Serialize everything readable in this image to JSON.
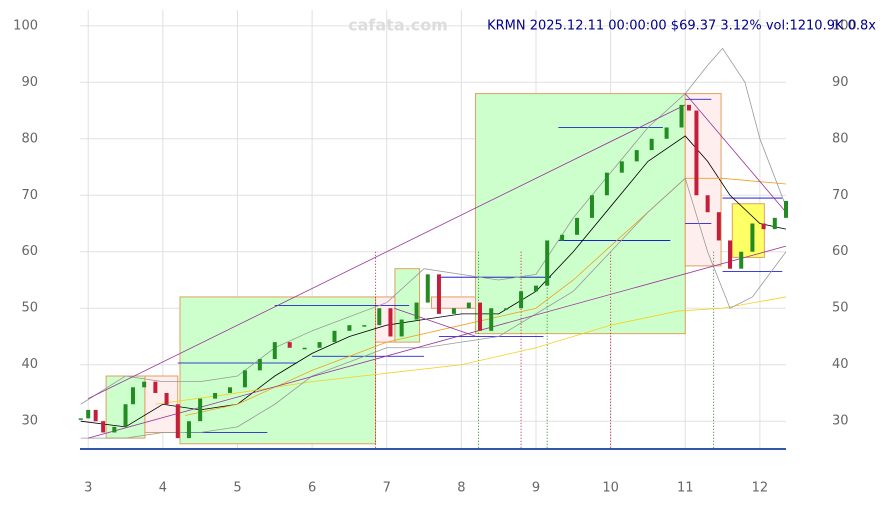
{
  "chart_data": {
    "type": "candlestick",
    "title": "KRMN 2025.12.11 00:00:00 $69.37 3.12% vol:1210.9K 0.8x",
    "watermark": "cafata.com",
    "xlim": [
      2.89,
      12.35
    ],
    "ylim": [
      24.9,
      102.8
    ],
    "xticks": [
      3,
      4,
      5,
      6,
      7,
      8,
      9,
      10,
      11,
      12
    ],
    "yticks": [
      30,
      40,
      50,
      60,
      70,
      80,
      90,
      100
    ],
    "grid": true,
    "candles": {
      "x": [
        2.9,
        3.0,
        3.1,
        3.2,
        3.35,
        3.5,
        3.6,
        3.75,
        3.9,
        4.05,
        4.2,
        4.35,
        4.5,
        4.7,
        4.9,
        5.1,
        5.3,
        5.5,
        5.7,
        5.9,
        6.1,
        6.3,
        6.5,
        6.7,
        6.9,
        7.05,
        7.2,
        7.4,
        7.55,
        7.7,
        7.9,
        8.1,
        8.25,
        8.4,
        8.6,
        8.8,
        9.0,
        9.15,
        9.35,
        9.55,
        9.75,
        9.95,
        10.15,
        10.35,
        10.55,
        10.75,
        10.95,
        11.05,
        11.15,
        11.3,
        11.45,
        11.6,
        11.75,
        11.9,
        12.05,
        12.2,
        12.35
      ],
      "close": [
        30.5,
        32,
        30,
        28,
        29,
        33,
        36,
        37,
        35,
        33,
        27,
        30,
        34,
        35,
        36,
        39,
        41,
        44,
        43,
        43,
        44,
        46,
        47,
        47,
        50,
        45,
        48,
        51,
        56,
        49,
        50,
        51,
        46,
        50,
        50,
        53,
        54,
        62,
        63,
        66,
        70,
        74,
        76,
        78,
        80,
        82,
        86,
        85,
        70,
        67,
        62,
        57,
        60,
        65,
        64,
        66,
        69
      ],
      "up_color": "#228b22",
      "down_color": "#c41e3a"
    },
    "lines": [
      {
        "color": "#000000",
        "x": [
          2.9,
          3.5,
          4.0,
          4.5,
          5,
          5.5,
          6,
          6.5,
          7,
          7.5,
          8,
          8.5,
          9,
          9.5,
          10,
          10.5,
          11,
          11.3,
          11.6,
          12,
          12.35
        ],
        "values": [
          30,
          29,
          33,
          32,
          33,
          38,
          42,
          45,
          47,
          48,
          49,
          49,
          53,
          60,
          68,
          76,
          80.5,
          76,
          70,
          65,
          64
        ]
      },
      {
        "color": "#f0a020",
        "x": [
          4.3,
          5,
          5.5,
          6,
          7,
          8,
          9,
          9.5,
          10,
          10.5,
          11,
          11.5,
          12.35
        ],
        "values": [
          31,
          33,
          36,
          39,
          44,
          47,
          50,
          55,
          61,
          67,
          73,
          73,
          72
        ]
      },
      {
        "color": "#f5d020",
        "x": [
          3.9,
          5,
          6,
          7,
          8,
          9,
          10,
          10.9,
          11.5,
          12.35
        ],
        "values": [
          33,
          35,
          37,
          38.5,
          40,
          43,
          47,
          49.5,
          50,
          52
        ]
      },
      {
        "color": "#999999",
        "x": [
          2.9,
          3.5,
          4,
          4.5,
          5,
          5.5,
          6,
          7,
          7.5,
          8,
          8.5,
          9,
          9.5,
          10,
          10.5,
          11,
          11.3,
          11.5,
          11.8,
          12,
          12.35
        ],
        "values": [
          33,
          38,
          37,
          37,
          38,
          43,
          46,
          51,
          57,
          56,
          55,
          56,
          66,
          74,
          82,
          88,
          93,
          96,
          90,
          80,
          68
        ]
      },
      {
        "color": "#999999",
        "x": [
          2.9,
          3.5,
          4,
          4.5,
          5,
          5.5,
          6,
          7,
          7.5,
          8,
          8.5,
          9,
          9.5,
          10,
          10.5,
          11,
          11.3,
          11.6,
          11.9,
          12.35
        ],
        "values": [
          27,
          27,
          28,
          28,
          29,
          33,
          38,
          43,
          43,
          44,
          45,
          49,
          53,
          60,
          67,
          73,
          60,
          50,
          52,
          60
        ]
      }
    ],
    "zones": [
      {
        "x0": 3.24,
        "x1": 3.76,
        "y0": 27,
        "y1": 38,
        "color": "#ccffcc"
      },
      {
        "x0": 3.76,
        "x1": 4.2,
        "y0": 28,
        "y1": 38,
        "color": "#ffeeee"
      },
      {
        "x0": 4.23,
        "x1": 6.85,
        "y0": 26,
        "y1": 52,
        "color": "#ccffcc"
      },
      {
        "x0": 6.85,
        "x1": 7.11,
        "y0": 44,
        "y1": 52,
        "color": "#ffeeee"
      },
      {
        "x0": 7.11,
        "x1": 7.44,
        "y0": 44,
        "y1": 57,
        "color": "#ccffcc"
      },
      {
        "x0": 7.6,
        "x1": 8.19,
        "y0": 50,
        "y1": 52,
        "color": "#ffeeee"
      },
      {
        "x0": 8.19,
        "x1": 11.0,
        "y0": 45.5,
        "y1": 88,
        "color": "#ccffcc"
      },
      {
        "x0": 11.0,
        "x1": 11.48,
        "y0": 57.5,
        "y1": 88,
        "color": "#ffeeee"
      },
      {
        "x0": 11.63,
        "x1": 12.06,
        "y0": 59,
        "y1": 68.5,
        "color": "#ffff66"
      }
    ],
    "levels": [
      {
        "x0": 4.2,
        "x1": 5.8,
        "y": 40.3
      },
      {
        "x0": 5.5,
        "x1": 7.3,
        "y": 50.5
      },
      {
        "x0": 4.3,
        "x1": 5.4,
        "y": 28
      },
      {
        "x0": 6.0,
        "x1": 7.5,
        "y": 41.5
      },
      {
        "x0": 7.7,
        "x1": 9.2,
        "y": 55.5
      },
      {
        "x0": 7.7,
        "x1": 9.1,
        "y": 45
      },
      {
        "x0": 9.3,
        "x1": 10.7,
        "y": 82
      },
      {
        "x0": 9.3,
        "x1": 10.8,
        "y": 62
      },
      {
        "x0": 11.0,
        "x1": 11.35,
        "y": 87
      },
      {
        "x0": 11.0,
        "x1": 11.35,
        "y": 65
      },
      {
        "x0": 11.5,
        "x1": 12.3,
        "y": 69.5
      },
      {
        "x0": 11.5,
        "x1": 12.3,
        "y": 56.5
      }
    ],
    "trendlines": [
      {
        "x0": 3.0,
        "y0": 34,
        "x1": 11.0,
        "y1": 86
      },
      {
        "x0": 3.0,
        "y0": 27,
        "x1": 12.35,
        "y1": 61
      },
      {
        "x0": 11.0,
        "y0": 88,
        "x1": 12.35,
        "y1": 67
      },
      {
        "x0": 7.1,
        "y0": 50,
        "x1": 8.2,
        "y1": 45
      }
    ],
    "markers": [
      6.85,
      8.23,
      8.8,
      9.15,
      10.0,
      11.38
    ]
  }
}
